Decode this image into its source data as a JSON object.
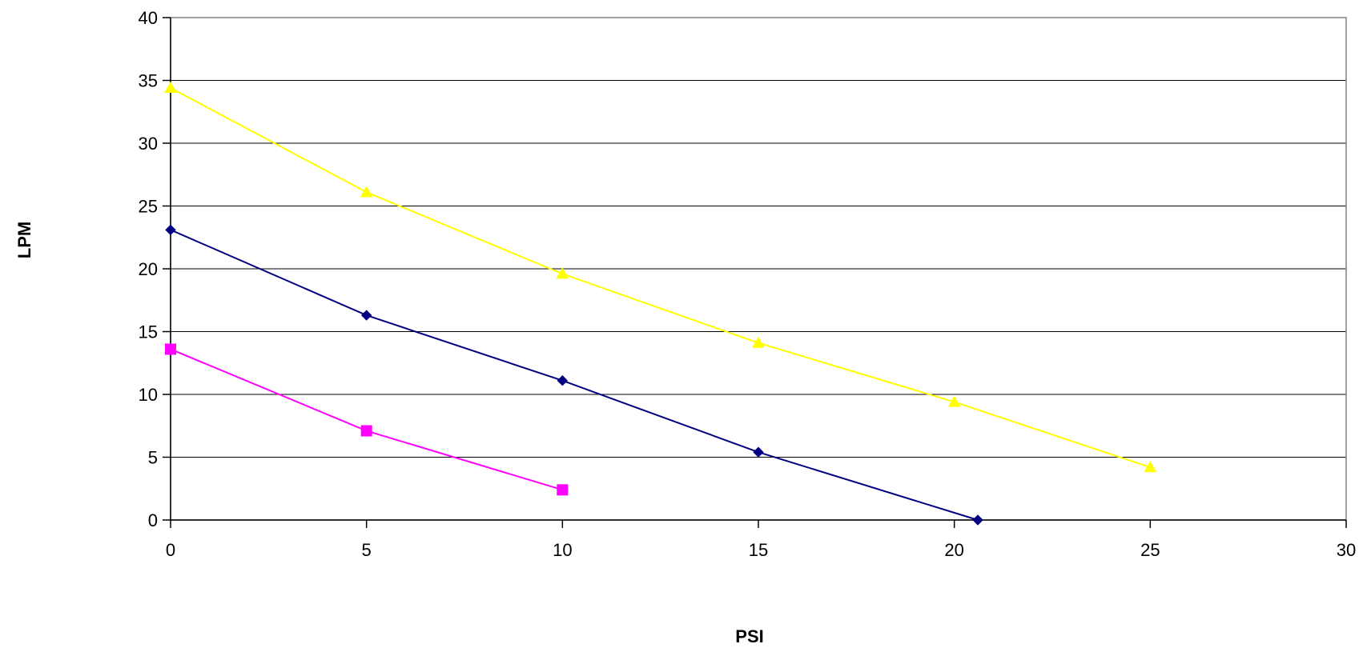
{
  "chart_data": {
    "type": "line",
    "title": "",
    "xlabel": "PSI",
    "ylabel": "LPM",
    "xlim": [
      0,
      30
    ],
    "ylim": [
      0,
      40
    ],
    "x_ticks": [
      "0",
      "5",
      "10",
      "15",
      "20",
      "25",
      "30"
    ],
    "y_ticks": [
      "0",
      "5",
      "10",
      "15",
      "20",
      "25",
      "30",
      "35",
      "40"
    ],
    "grid": "horizontal",
    "legend": "none",
    "series": [
      {
        "color": "#000080",
        "marker": "diamond",
        "points": [
          [
            0,
            23.1
          ],
          [
            5,
            16.3
          ],
          [
            10,
            11.1
          ],
          [
            15,
            5.4
          ],
          [
            20.6,
            0
          ]
        ]
      },
      {
        "color": "#ff00ff",
        "marker": "square",
        "points": [
          [
            0,
            13.6
          ],
          [
            5,
            7.1
          ],
          [
            10,
            2.4
          ]
        ]
      },
      {
        "color": "#ffff00",
        "marker": "triangle",
        "points": [
          [
            0,
            34.4
          ],
          [
            5,
            26.1
          ],
          [
            10,
            19.6
          ],
          [
            15,
            14.1
          ],
          [
            20,
            9.4
          ],
          [
            25,
            4.2
          ]
        ]
      }
    ]
  }
}
